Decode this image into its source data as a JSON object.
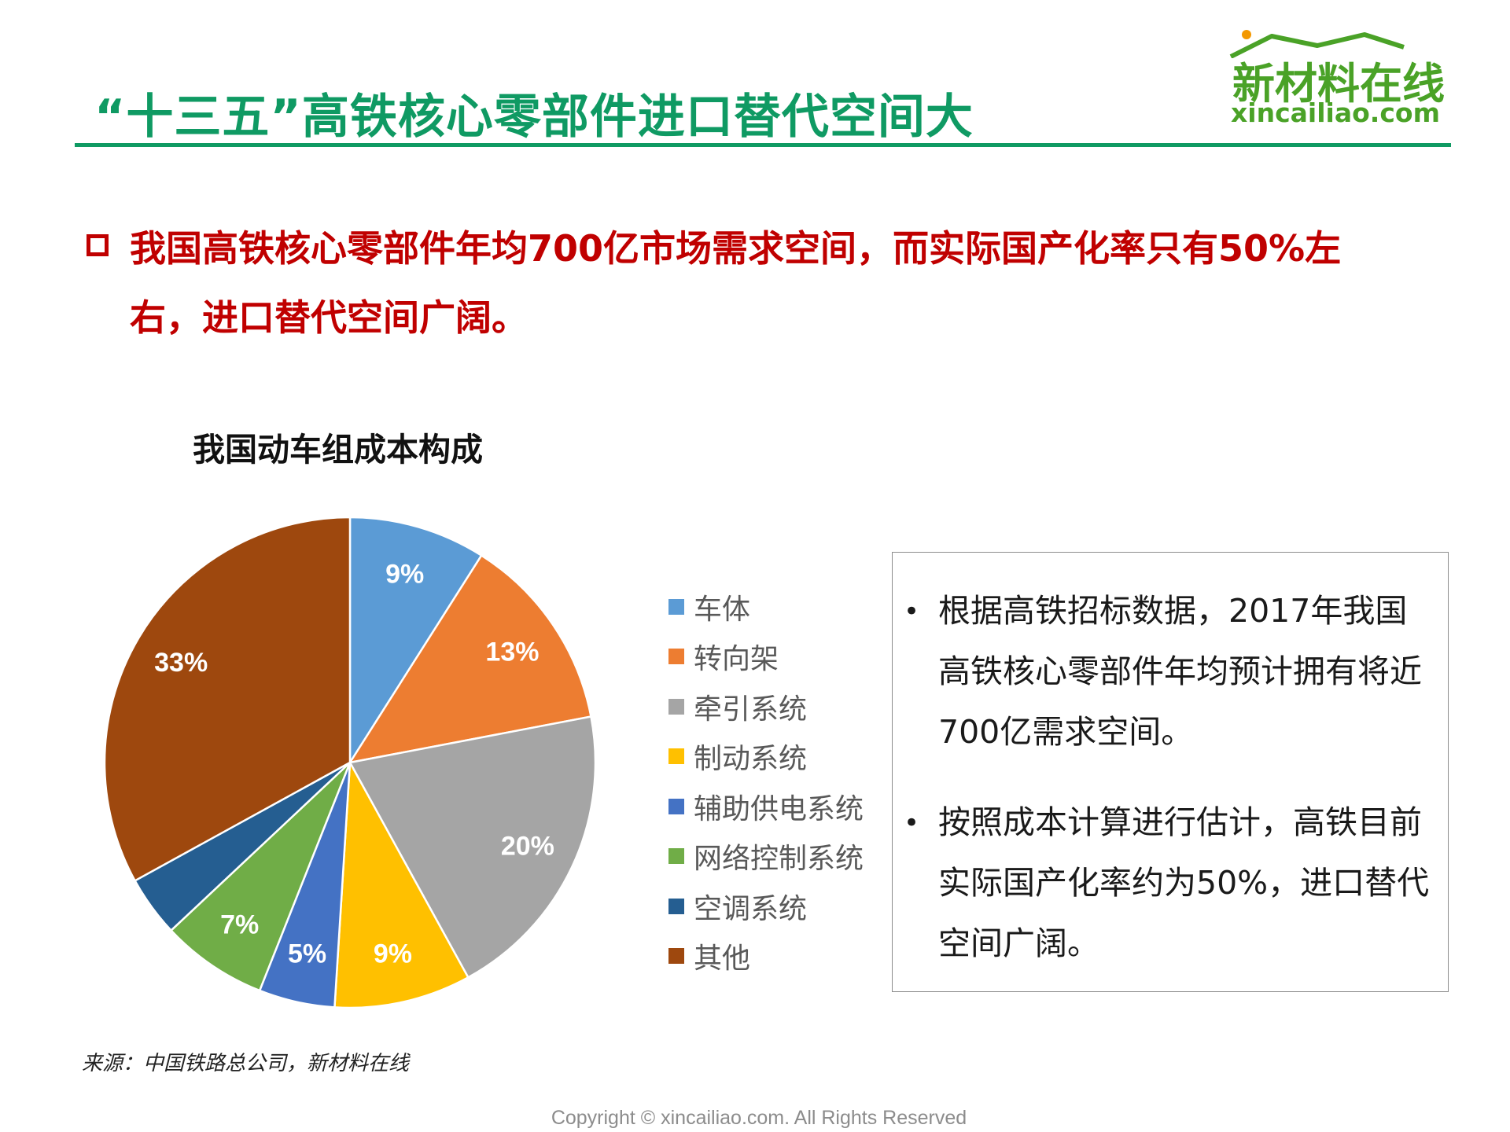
{
  "page": {
    "title": "“十三五”高铁核心零部件进口替代空间大",
    "headline": "我国高铁核心零部件年均700亿市场需求空间，而实际国产化率只有50%左右，进口替代空间广阔。",
    "source": "来源：中国铁路总公司，新材料在线",
    "copyright": "Copyright © xincailiao.com. All Rights Reserved"
  },
  "logo": {
    "cn": "新材料在线",
    "en": "xincailiao.com",
    "color": "#4aa227"
  },
  "colors": {
    "title": "#0f9a63",
    "headline": "#c00000"
  },
  "notes": [
    "根据高铁招标数据，2017年我国高铁核心零部件年均预计拥有将近700亿需求空间。",
    "按照成本计算进行估计，高铁目前实际国产化率约为50%，进口替代空间广阔。"
  ],
  "chart_data": {
    "type": "pie",
    "title": "我国动车组成本构成",
    "unit": "%",
    "legend_position": "right",
    "start": "12 o'clock, clockwise",
    "slices": [
      {
        "label": "车体",
        "value": 9,
        "value_label": "9%",
        "color": "#5b9bd5"
      },
      {
        "label": "转向架",
        "value": 13,
        "value_label": "13%",
        "color": "#ed7d31"
      },
      {
        "label": "牵引系统",
        "value": 20,
        "value_label": "20%",
        "color": "#a5a5a5"
      },
      {
        "label": "制动系统",
        "value": 9,
        "value_label": "9%",
        "color": "#ffc000"
      },
      {
        "label": "辅助供电系统",
        "value": 5,
        "value_label": "5%",
        "color": "#4472c4"
      },
      {
        "label": "网络控制系统",
        "value": 7,
        "value_label": "7%",
        "color": "#70ad47"
      },
      {
        "label": "空调系统",
        "value": 4,
        "value_label": "",
        "color": "#255e91"
      },
      {
        "label": "其他",
        "value": 33,
        "value_label": "33%",
        "color": "#9e480e"
      }
    ]
  }
}
